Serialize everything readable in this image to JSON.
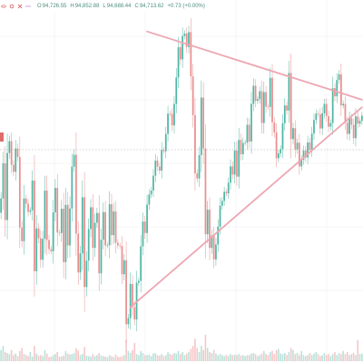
{
  "ohlc": {
    "open_label": "O",
    "open": "94,726.55",
    "high_label": "H",
    "high": "94,852.88",
    "low_label": "L",
    "low": "94,688.44",
    "close_label": "C",
    "close": "94,713.62",
    "change": "+0.73 (+0.00%)"
  },
  "toolbar": {
    "icons": [
      "eye-off-icon",
      "gear-icon",
      "close-icon",
      "more-icon"
    ]
  },
  "colors": {
    "up": "#4fb6a3",
    "down": "#e98f8f",
    "trendline": "#eda7b2",
    "grid": "#eeeeee",
    "text": "#4a8f7f"
  },
  "chart_data": {
    "type": "candlestick",
    "title": "",
    "xlabel": "",
    "ylabel": "",
    "grid": true,
    "pattern": "symmetrical triangle",
    "trendlines": [
      {
        "name": "",
        "role": "upper",
        "from_index": 70,
        "to_index": 173,
        "from_price": 99100,
        "to_price": 96850
      },
      {
        "name": "",
        "role": "lower",
        "from_index": 62,
        "to_index": 173,
        "from_price": 90000,
        "to_price": 96600
      }
    ],
    "reference_price": 95200,
    "candles_open": [
      93120,
      93590,
      94750,
      92880,
      95090,
      95480,
      94700,
      94470,
      95240,
      94960,
      92630,
      92180,
      93590,
      93420,
      93150,
      93200,
      94180,
      91190,
      92600,
      92280,
      91570,
      92260,
      93850,
      92220,
      91920,
      91850,
      93130,
      93940,
      92470,
      92450,
      93250,
      91490,
      93380,
      92040,
      93260,
      94640,
      95030,
      92430,
      91150,
      91780,
      93630,
      90670,
      91540,
      92580,
      93300,
      91960,
      92790,
      93110,
      91120,
      92230,
      93140,
      92040,
      92050,
      93400,
      92380,
      93160,
      92130,
      92040,
      92020,
      91090,
      91550,
      89440,
      89640,
      90770,
      90000,
      89600,
      90810,
      90870,
      92010,
      92830,
      92450,
      93390,
      93720,
      93850,
      94340,
      94840,
      94640,
      94510,
      95190,
      95150,
      95720,
      96390,
      96380,
      96000,
      96710,
      97580,
      98580,
      98180,
      98950,
      99030,
      98590,
      99080,
      97620,
      96340,
      94420,
      94250,
      95020,
      96920,
      95240,
      92410,
      93220,
      91960,
      92370,
      91580,
      92070,
      92660,
      93350,
      93510,
      93810,
      93760,
      94110,
      94650,
      94380,
      95170,
      94310,
      95520,
      95050,
      95420,
      95430,
      96020,
      95470,
      96710,
      97310,
      96810,
      96870,
      97130,
      96080,
      97100,
      96620,
      96610,
      97570,
      96100,
      95770,
      94920,
      95080,
      95220,
      96070,
      96660,
      96490,
      97730,
      95550,
      95910,
      95210,
      95430,
      94650,
      94870,
      95170,
      94940,
      95440,
      95190,
      95730,
      96180,
      96390,
      96370,
      95900,
      96400,
      96710,
      96310,
      95960,
      96080,
      97230,
      96960,
      97500,
      97690,
      96660,
      96710,
      96090,
      95720,
      96240,
      96020,
      95580,
      96300,
      96060,
      96150
    ],
    "candles_close": [
      93590,
      94750,
      92880,
      95090,
      95480,
      94700,
      94470,
      95240,
      94960,
      92630,
      92180,
      93590,
      93420,
      93150,
      93200,
      94180,
      91190,
      92600,
      92280,
      91570,
      92260,
      93850,
      92220,
      91920,
      91850,
      93130,
      93940,
      92470,
      92450,
      93250,
      91490,
      93380,
      92040,
      93260,
      94640,
      95030,
      92430,
      91150,
      91780,
      93630,
      90670,
      91540,
      92580,
      93300,
      91960,
      92790,
      93110,
      91120,
      92230,
      93140,
      92040,
      92050,
      93400,
      92380,
      93160,
      92130,
      92040,
      92020,
      91090,
      91550,
      89440,
      89640,
      90770,
      90000,
      89600,
      90810,
      90870,
      92010,
      92830,
      92450,
      93390,
      93720,
      93850,
      94340,
      94840,
      94640,
      94510,
      95190,
      95150,
      95720,
      96390,
      96380,
      96000,
      96710,
      97580,
      98580,
      98180,
      98950,
      99030,
      98590,
      99080,
      97620,
      96340,
      94420,
      94250,
      95020,
      96920,
      95240,
      92410,
      93220,
      91960,
      92370,
      91580,
      92070,
      92660,
      93350,
      93510,
      93810,
      93760,
      94110,
      94650,
      94380,
      95170,
      94310,
      95520,
      95050,
      95420,
      95430,
      96020,
      95470,
      96710,
      97310,
      96810,
      96870,
      97130,
      96080,
      97100,
      96620,
      96610,
      97570,
      96100,
      95770,
      94920,
      95080,
      95220,
      96070,
      96660,
      96490,
      97730,
      95550,
      95910,
      95210,
      95430,
      94650,
      94870,
      95170,
      94940,
      95440,
      95190,
      95730,
      96180,
      96390,
      96370,
      95900,
      96400,
      96710,
      96310,
      95960,
      96080,
      97230,
      96960,
      97500,
      97690,
      96660,
      96710,
      96090,
      95720,
      96240,
      96020,
      95580,
      96300,
      96060,
      96150,
      96320
    ],
    "y_range": [
      89000,
      99600
    ],
    "volume_range": [
      0,
      100
    ],
    "volumes": [
      22,
      30,
      18,
      16,
      14,
      22,
      12,
      15,
      10,
      20,
      26,
      14,
      12,
      10,
      18,
      9,
      30,
      15,
      11,
      12,
      10,
      22,
      15,
      8,
      9,
      12,
      14,
      18,
      9,
      9,
      11,
      20,
      15,
      13,
      14,
      16,
      25,
      21,
      12,
      14,
      28,
      11,
      10,
      9,
      14,
      10,
      12,
      16,
      11,
      10,
      9,
      8,
      12,
      10,
      8,
      13,
      9,
      8,
      10,
      12,
      42,
      20,
      16,
      22,
      36,
      14,
      12,
      20,
      16,
      12,
      12,
      13,
      10,
      15,
      16,
      12,
      11,
      14,
      10,
      12,
      18,
      14,
      13,
      16,
      15,
      20,
      14,
      18,
      12,
      15,
      18,
      24,
      30,
      44,
      26,
      18,
      30,
      22,
      52,
      26,
      18,
      16,
      22,
      15,
      12,
      14,
      12,
      10,
      12,
      10,
      14,
      12,
      13,
      12,
      14,
      11,
      12,
      10,
      12,
      12,
      15,
      16,
      14,
      10,
      12,
      15,
      20,
      14,
      12,
      18,
      20,
      14,
      22,
      24,
      15,
      14,
      16,
      12,
      18,
      26,
      22,
      14,
      16,
      12,
      20,
      12,
      10,
      12,
      16,
      12,
      15,
      18,
      14,
      10,
      12,
      16,
      12,
      14,
      10,
      14,
      18,
      12,
      16,
      14,
      20,
      14,
      18,
      12,
      14,
      16,
      12,
      42,
      14,
      15
    ]
  }
}
